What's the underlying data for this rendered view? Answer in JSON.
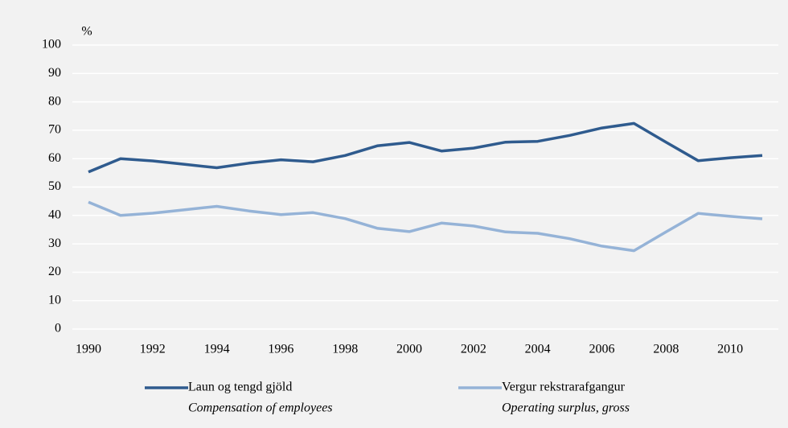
{
  "chart_data": {
    "type": "line",
    "y_unit": "%",
    "categories": [
      "1990",
      null,
      "1992",
      null,
      "1994",
      null,
      "1996",
      null,
      "1998",
      null,
      "2000",
      null,
      "2002",
      null,
      "2004",
      null,
      "2006",
      null,
      "2008",
      null,
      "2010",
      null
    ],
    "series": [
      {
        "name": "Laun og tengd gjöld",
        "subtitle": "Compensation of employees",
        "color": "#2f5b8e",
        "values": [
          55.3,
          60,
          59.2,
          58,
          56.8,
          58.4,
          59.6,
          58.9,
          61.1,
          64.5,
          65.7,
          62.7,
          63.7,
          65.8,
          66.1,
          68.2,
          70.8,
          72.4,
          65.8,
          59.3,
          60.3,
          61.1
        ]
      },
      {
        "name": "Vergur rekstrarafgangur",
        "subtitle": "Operating surplus, gross",
        "color": "#95b3d7",
        "values": [
          44.7,
          40,
          40.8,
          42,
          43.2,
          41.6,
          40.3,
          41,
          38.9,
          35.5,
          34.3,
          37.3,
          36.3,
          34.2,
          33.7,
          31.8,
          29.2,
          27.6,
          34.2,
          40.7,
          39.7,
          38.8
        ]
      }
    ],
    "ylim": [
      0,
      100
    ],
    "yticks": [
      0,
      10,
      20,
      30,
      40,
      50,
      60,
      70,
      80,
      90,
      100
    ],
    "grid": true
  }
}
